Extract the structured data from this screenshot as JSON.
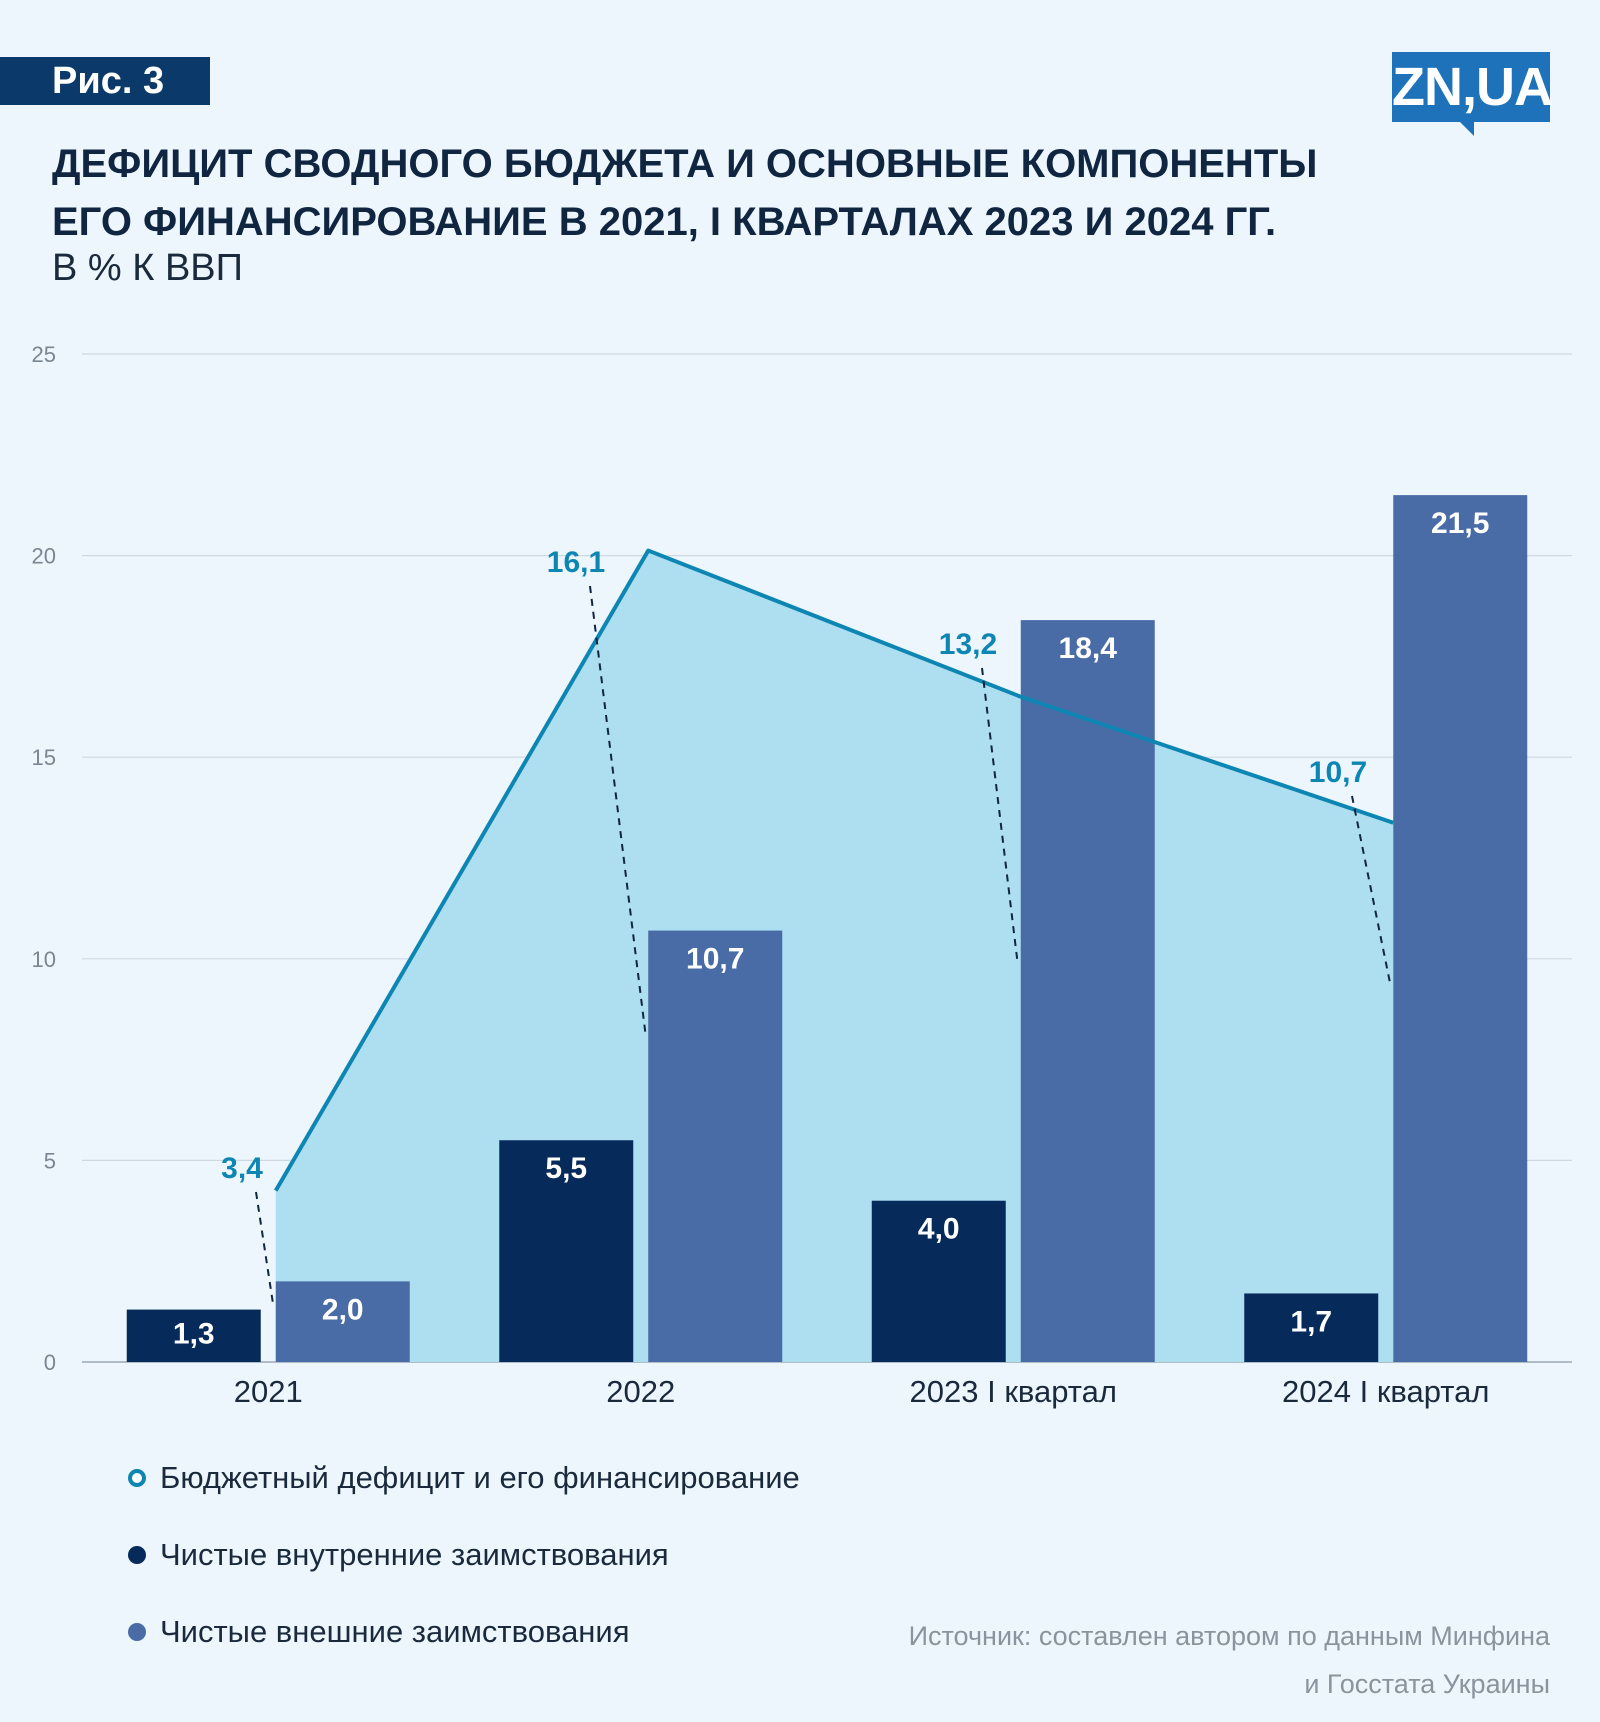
{
  "figure_label": "Рис. 3",
  "brand": "ZN,UA",
  "title_line1": "ДЕФИЦИТ СВОДНОГО БЮДЖЕТА И ОСНОВНЫЕ КОМПОНЕНТЫ",
  "title_line2": "ЕГО ФИНАНСИРОВАНИЕ В 2021, I КВАРТАЛАХ 2023 И 2024 ГГ.",
  "subtitle": "В % К ВВП",
  "legend": [
    {
      "label": "Бюджетный дефицит и его финансирование",
      "color": "#0e86b3",
      "style": "ring"
    },
    {
      "label": "Чистые внутренние заимствования",
      "color": "#062b5a",
      "style": "dot"
    },
    {
      "label": "Чистые внешние заимствования",
      "color": "#4a6ca6",
      "style": "dot"
    }
  ],
  "source_line1": "Источник: составлен автором по данным Минфина",
  "source_line2": "и Госстата Украины",
  "colors": {
    "deficit_line": "#0e86b3",
    "deficit_area": "#aedff1",
    "domestic": "#062b5a",
    "external": "#4a6ca6",
    "grid": "#cdd8e2",
    "label_deficit": "#0e86b3"
  },
  "chart_data": {
    "type": "bar",
    "categories": [
      "2021",
      "2022",
      "2023 I квартал",
      "2024 I квартал"
    ],
    "ylim": [
      0,
      25
    ],
    "yticks": [
      "0",
      "5",
      "10",
      "15",
      "20",
      "25"
    ],
    "series": [
      {
        "name": "Чистые внутренние заимствования",
        "type": "bar",
        "values": [
          1.3,
          5.5,
          4.0,
          1.7
        ],
        "labels": [
          "1,3",
          "5,5",
          "4,0",
          "1,7"
        ]
      },
      {
        "name": "Чистые внешние заимствования",
        "type": "bar",
        "values": [
          2.0,
          10.7,
          18.4,
          21.5
        ],
        "labels": [
          "2,0",
          "10,7",
          "18,4",
          "21,5"
        ]
      },
      {
        "name": "Бюджетный дефицит и его финансирование",
        "type": "area",
        "values": [
          3.4,
          16.1,
          13.2,
          10.7
        ],
        "labels": [
          "3,4",
          "16,1",
          "13,2",
          "10,7"
        ]
      }
    ]
  }
}
